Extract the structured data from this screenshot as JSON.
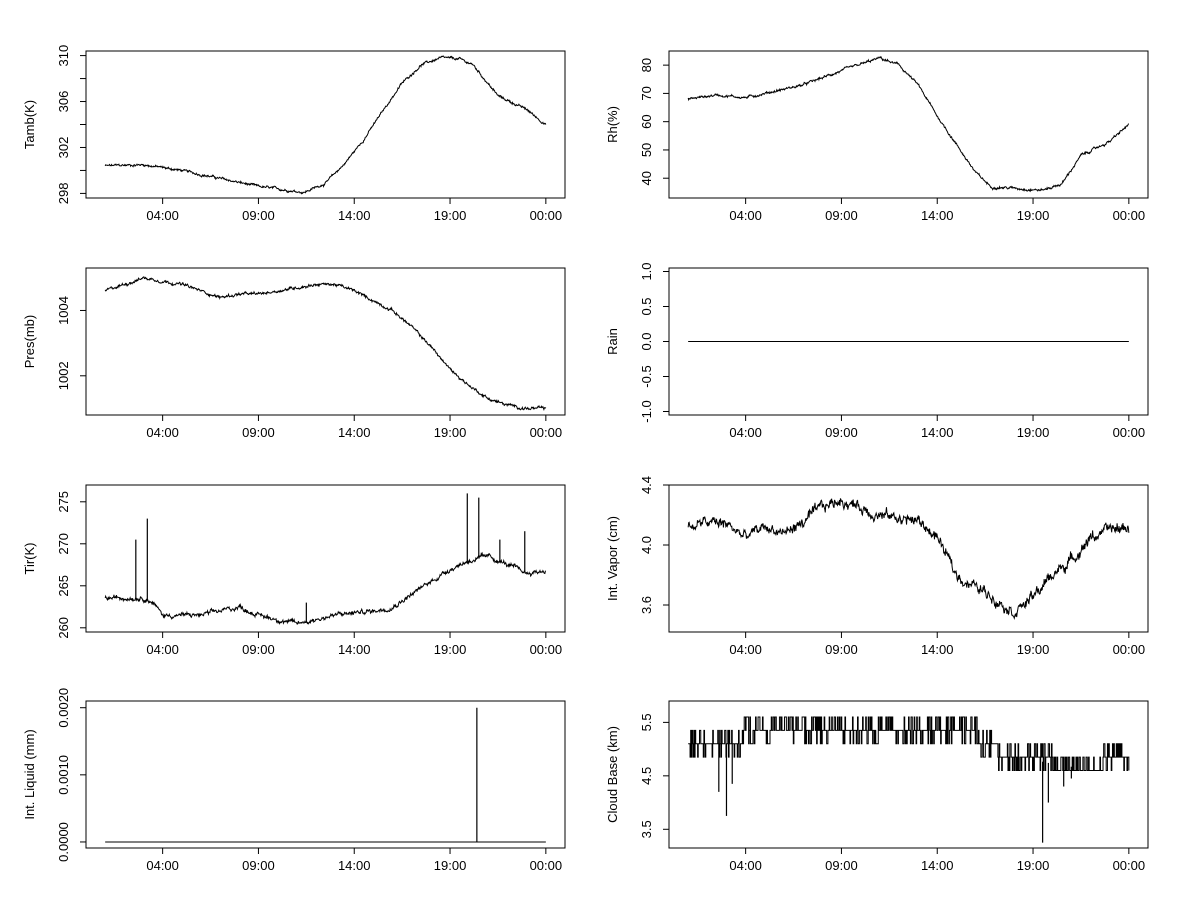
{
  "chart_data": [
    {
      "type": "line",
      "ylabel": "Tamb(K)",
      "x_ticks": [
        "04:00",
        "09:00",
        "14:00",
        "19:00",
        "00:00"
      ],
      "y_ticks": [
        298,
        302,
        306,
        310
      ],
      "ylim": [
        297.6,
        310.4
      ],
      "x": [
        0,
        2,
        4,
        6,
        8,
        10.4,
        11.5,
        12.5,
        13.5,
        14.5,
        15.5,
        16.5,
        17.5,
        18.5,
        19.2,
        20.5,
        22,
        23
      ],
      "y": [
        300.4,
        300.5,
        300.0,
        299.3,
        298.6,
        298.1,
        298.9,
        300.6,
        302.7,
        305.2,
        307.6,
        309.2,
        309.8,
        309.7,
        309.2,
        306.5,
        305.3,
        304.0
      ],
      "noise": 0.12,
      "series": "noisy"
    },
    {
      "type": "line",
      "ylabel": "Rh(%)",
      "x_ticks": [
        "04:00",
        "09:00",
        "14:00",
        "19:00",
        "00:00"
      ],
      "y_ticks": [
        40,
        50,
        60,
        70,
        80
      ],
      "ylim": [
        33,
        85
      ],
      "x": [
        0,
        1.5,
        3,
        4,
        6,
        8,
        10,
        11,
        12,
        13,
        14,
        15,
        15.8,
        17,
        18.5,
        19.5,
        20.5,
        22,
        23
      ],
      "y": [
        68,
        69.5,
        68.5,
        70,
        73,
        78,
        82.5,
        80,
        73,
        62,
        52,
        42,
        37,
        36.5,
        35.8,
        38,
        48,
        53,
        59
      ],
      "noise": 0.5,
      "series": "noisy"
    },
    {
      "type": "line",
      "ylabel": "Pres(mb)",
      "x_ticks": [
        "04:00",
        "09:00",
        "14:00",
        "19:00",
        "00:00"
      ],
      "y_ticks": [
        1002,
        1004
      ],
      "ylim": [
        1000.8,
        1005.3
      ],
      "x": [
        0,
        1,
        2,
        3,
        4,
        5,
        6,
        7,
        8,
        9,
        10,
        11,
        12,
        13,
        14,
        15,
        16,
        17,
        18,
        19,
        20,
        21,
        22,
        23
      ],
      "y": [
        1004.6,
        1004.8,
        1005.0,
        1004.9,
        1004.8,
        1004.6,
        1004.4,
        1004.5,
        1004.5,
        1004.6,
        1004.7,
        1004.8,
        1004.8,
        1004.6,
        1004.3,
        1004.0,
        1003.5,
        1002.9,
        1002.2,
        1001.7,
        1001.3,
        1001.1,
        1001.0,
        1001.0
      ],
      "noise": 0.05,
      "series": "noisy"
    },
    {
      "type": "line",
      "ylabel": "Rain",
      "x_ticks": [
        "04:00",
        "09:00",
        "14:00",
        "19:00",
        "00:00"
      ],
      "y_ticks": [
        -1.0,
        -0.5,
        0.0,
        0.5,
        1.0
      ],
      "y_tick_labels": [
        "-1.0",
        "-0.5",
        "0.0",
        "0.5",
        "1.0"
      ],
      "ylim": [
        -1.05,
        1.05
      ],
      "x": [
        0,
        23
      ],
      "y": [
        0,
        0
      ],
      "noise": 0,
      "series": "flat"
    },
    {
      "type": "line",
      "ylabel": "Tir(K)",
      "x_ticks": [
        "04:00",
        "09:00",
        "14:00",
        "19:00",
        "00:00"
      ],
      "y_ticks": [
        260,
        265,
        270,
        275
      ],
      "ylim": [
        259.5,
        277
      ],
      "x": [
        0,
        1,
        2,
        2.5,
        3,
        4,
        5,
        6,
        7,
        8,
        9,
        10,
        11,
        12,
        13,
        14,
        15,
        16,
        17,
        18,
        19,
        20,
        21,
        22,
        23
      ],
      "y": [
        263.5,
        263.6,
        263.6,
        263.0,
        261.5,
        261.5,
        261.5,
        262.0,
        262.5,
        261.5,
        261.0,
        260.5,
        261.0,
        261.5,
        261.8,
        262.0,
        262.5,
        264.0,
        265.5,
        267.0,
        268.0,
        268.5,
        267.5,
        266.5,
        266.8
      ],
      "spikes": [
        [
          1.6,
          270.5
        ],
        [
          2.2,
          273.0
        ],
        [
          10.5,
          263.0
        ],
        [
          18.9,
          276.0
        ],
        [
          19.5,
          275.5
        ],
        [
          20.6,
          270.5
        ],
        [
          21.9,
          271.5
        ]
      ],
      "noise": 0.3,
      "series": "noisy"
    },
    {
      "type": "line",
      "ylabel": "Int. Vapor (cm)",
      "x_ticks": [
        "04:00",
        "09:00",
        "14:00",
        "19:00",
        "00:00"
      ],
      "y_ticks": [
        3.6,
        4.0,
        4.4
      ],
      "y_tick_labels": [
        "3.6",
        "4.0",
        "4.4"
      ],
      "ylim": [
        3.42,
        4.4
      ],
      "x": [
        0,
        1,
        2,
        3,
        4,
        5,
        6,
        7,
        8,
        9,
        10,
        11,
        12,
        13,
        14,
        15,
        16,
        17,
        18,
        19,
        20,
        21,
        22,
        23
      ],
      "y": [
        4.12,
        4.15,
        4.14,
        4.05,
        4.12,
        4.08,
        4.15,
        4.25,
        4.3,
        4.25,
        4.2,
        4.18,
        4.16,
        4.05,
        3.8,
        3.72,
        3.65,
        3.56,
        3.65,
        3.8,
        3.9,
        4.05,
        4.1,
        4.12
      ],
      "noise": 0.04,
      "series": "noisy"
    },
    {
      "type": "line",
      "ylabel": "Int. Liquid (mm)",
      "x_ticks": [
        "04:00",
        "09:00",
        "14:00",
        "19:00",
        "00:00"
      ],
      "y_ticks": [
        0.0,
        0.001,
        0.002
      ],
      "y_tick_labels": [
        "0.0000",
        "0.0010",
        "0.0020"
      ],
      "ylim": [
        -9e-05,
        0.0021
      ],
      "x": [
        0,
        23
      ],
      "y": [
        0,
        0
      ],
      "spikes": [
        [
          19.4,
          0.002
        ]
      ],
      "noise": 0,
      "series": "flat"
    },
    {
      "type": "line",
      "ylabel": "Cloud Base (km)",
      "x_ticks": [
        "04:00",
        "09:00",
        "14:00",
        "19:00",
        "00:00"
      ],
      "y_ticks": [
        3.5,
        4.5,
        5.5
      ],
      "y_tick_labels": [
        "3.5",
        "4.5",
        "5.5"
      ],
      "ylim": [
        3.15,
        5.9
      ],
      "x": [
        0,
        2.5,
        3,
        4,
        7,
        8,
        12,
        13,
        15,
        16,
        17,
        18,
        18.7,
        19.3,
        20.5,
        22,
        23
      ],
      "y": [
        5.1,
        5.1,
        5.25,
        5.35,
        5.4,
        5.45,
        5.4,
        5.4,
        5.25,
        5.0,
        4.85,
        4.8,
        4.75,
        4.7,
        4.65,
        4.75,
        4.85
      ],
      "levels": [
        4.6,
        4.85,
        5.1,
        5.35,
        5.6,
        5.85
      ],
      "spikes": [
        [
          1.6,
          4.2
        ],
        [
          2.0,
          3.75
        ],
        [
          2.3,
          4.35
        ],
        [
          18.5,
          3.25
        ],
        [
          18.8,
          4.0
        ],
        [
          19.6,
          4.3
        ],
        [
          20.0,
          4.45
        ]
      ],
      "noise": 0,
      "series": "stepped"
    }
  ]
}
